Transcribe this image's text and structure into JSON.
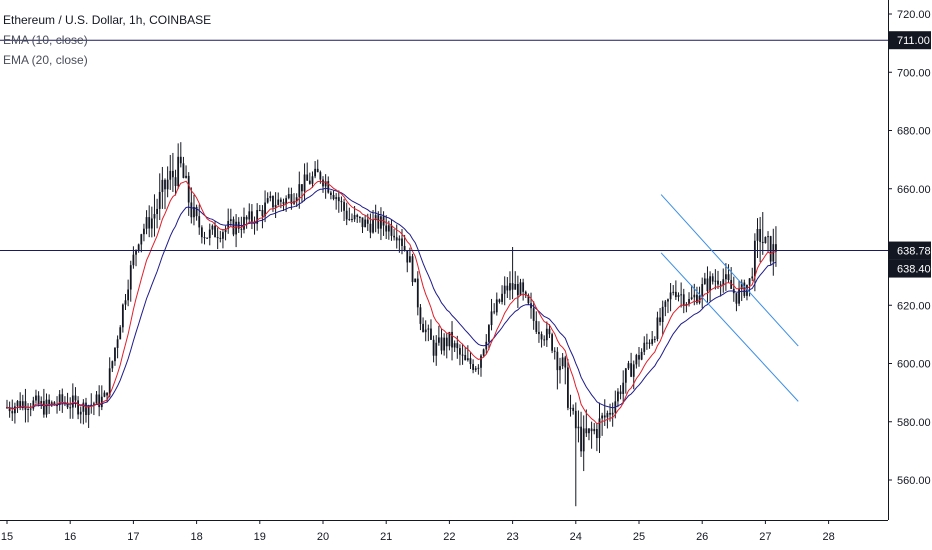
{
  "legend": {
    "title": "Ethereum / U.S. Dollar, 1h, COINBASE",
    "indicators": [
      "EMA (10, close)",
      "EMA (20, close)"
    ]
  },
  "colors": {
    "candle": "#131722",
    "ema10": "#e0202c",
    "ema20": "#1e1c8c",
    "hline": "#1a1a5e",
    "trendline": "#3a8ee6",
    "axis": "#131722",
    "price_tag": "#131722"
  },
  "chart_data": {
    "type": "candlestick",
    "symbol": "Ethereum / U.S. Dollar",
    "interval": "1h",
    "exchange": "COINBASE",
    "x_ticks": [
      "15",
      "16",
      "17",
      "18",
      "19",
      "20",
      "21",
      "22",
      "23",
      "24",
      "25",
      "26",
      "27",
      "28"
    ],
    "y_ticks": [
      "560.00",
      "580.00",
      "600.00",
      "620.00",
      "640.00",
      "660.00",
      "680.00",
      "700.00",
      "720.00"
    ],
    "ylim": [
      546,
      726
    ],
    "xlim": [
      14.9,
      29.0
    ],
    "horizontal_lines": [
      {
        "price": 711.0,
        "label": "711.00"
      },
      {
        "price": 638.78,
        "label": "638.78"
      }
    ],
    "last_price_label": "638.40",
    "last_price": 638.4,
    "trend_lines": [
      {
        "x1": 25.35,
        "y1": 658,
        "x2": 27.52,
        "y2": 606
      },
      {
        "x1": 25.35,
        "y1": 638,
        "x2": 27.52,
        "y2": 587
      }
    ],
    "price_path": [
      [
        15.0,
        585
      ],
      [
        15.3,
        587
      ],
      [
        15.6,
        585
      ],
      [
        15.9,
        587
      ],
      [
        16.2,
        585
      ],
      [
        16.55,
        588
      ],
      [
        16.75,
        610
      ],
      [
        16.9,
        627
      ],
      [
        17.1,
        645
      ],
      [
        17.3,
        650
      ],
      [
        17.55,
        663
      ],
      [
        17.75,
        667
      ],
      [
        17.95,
        650
      ],
      [
        18.15,
        644
      ],
      [
        18.4,
        646
      ],
      [
        18.6,
        647
      ],
      [
        18.9,
        650
      ],
      [
        19.15,
        655
      ],
      [
        19.4,
        656
      ],
      [
        19.65,
        661
      ],
      [
        19.95,
        665
      ],
      [
        20.2,
        658
      ],
      [
        20.4,
        650
      ],
      [
        20.65,
        648
      ],
      [
        20.95,
        648
      ],
      [
        21.2,
        645
      ],
      [
        21.4,
        633
      ],
      [
        21.55,
        615
      ],
      [
        21.75,
        605
      ],
      [
        22.0,
        608
      ],
      [
        22.25,
        600
      ],
      [
        22.45,
        600
      ],
      [
        22.65,
        615
      ],
      [
        22.9,
        626
      ],
      [
        23.1,
        626
      ],
      [
        23.35,
        614
      ],
      [
        23.6,
        608
      ],
      [
        23.8,
        598
      ],
      [
        23.95,
        580
      ],
      [
        24.1,
        573
      ],
      [
        24.3,
        577
      ],
      [
        24.55,
        584
      ],
      [
        24.8,
        596
      ],
      [
        25.1,
        606
      ],
      [
        25.35,
        615
      ],
      [
        25.55,
        626
      ],
      [
        25.8,
        621
      ],
      [
        26.05,
        627
      ],
      [
        26.3,
        630
      ],
      [
        26.55,
        623
      ],
      [
        26.75,
        628
      ],
      [
        26.9,
        645
      ],
      [
        27.0,
        640
      ],
      [
        27.15,
        638
      ]
    ]
  }
}
